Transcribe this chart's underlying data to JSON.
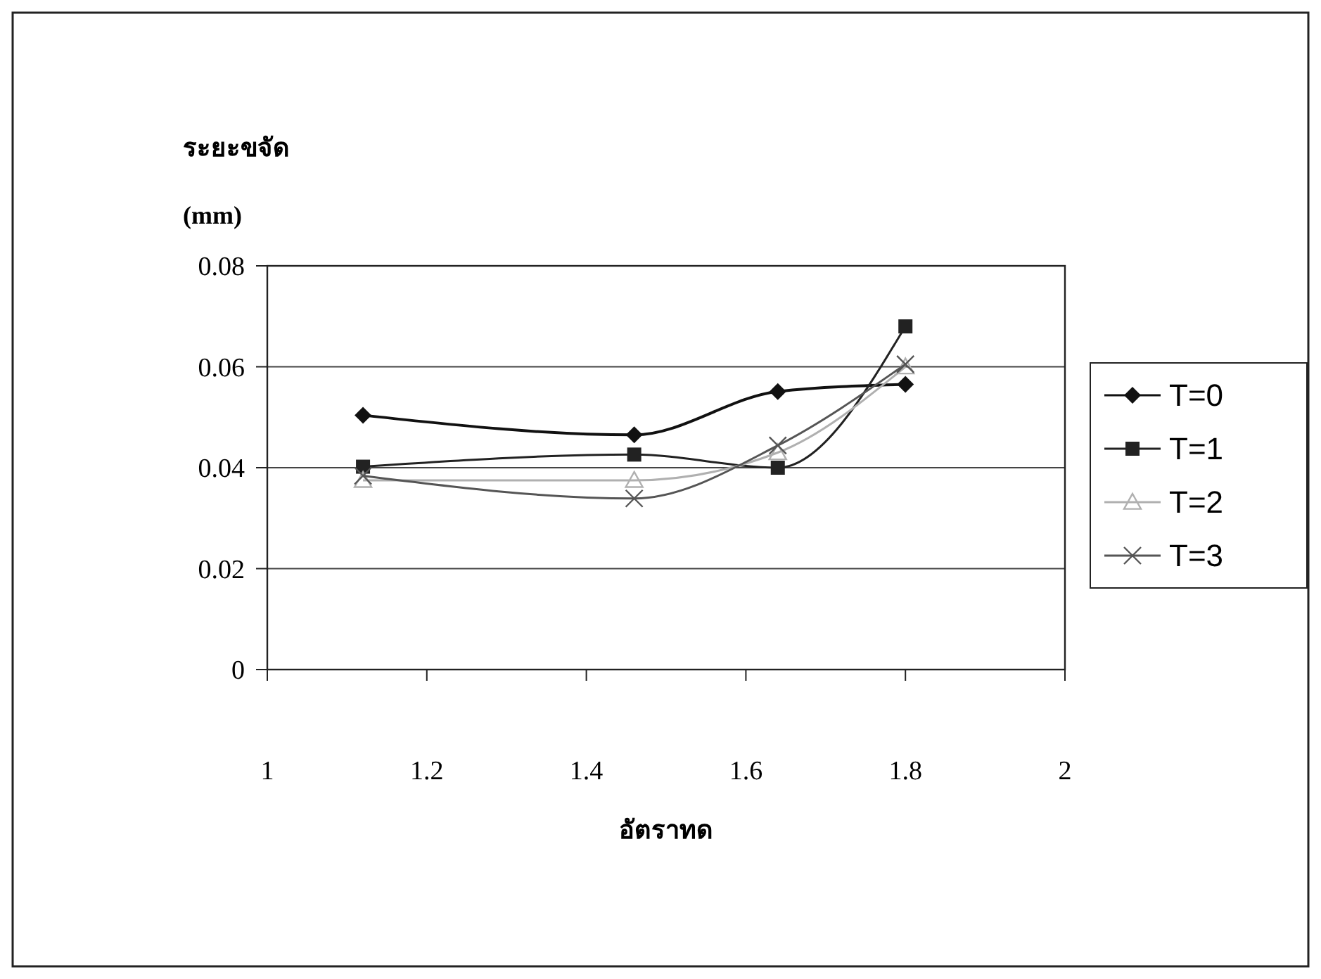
{
  "chart_data": {
    "type": "line",
    "ylabel": "ระยะขจัด (mm)",
    "xlabel": "อัตราทด",
    "x": [
      1.12,
      1.46,
      1.64,
      1.8
    ],
    "series": [
      {
        "name": "T=0",
        "color": "#111111",
        "marker": "diamond",
        "values": [
          0.0504,
          0.0465,
          0.0551,
          0.0565
        ]
      },
      {
        "name": "T=1",
        "color": "#222222",
        "marker": "square",
        "values": [
          0.0402,
          0.0426,
          0.04,
          0.068
        ]
      },
      {
        "name": "T=2",
        "color": "#b0b0b0",
        "marker": "triangle",
        "values": [
          0.0375,
          0.0375,
          0.043,
          0.06
        ]
      },
      {
        "name": "T=3",
        "color": "#555555",
        "marker": "cross",
        "values": [
          0.0384,
          0.0339,
          0.0444,
          0.0605
        ]
      }
    ],
    "xlim": [
      1,
      2
    ],
    "xticks": [
      1,
      1.2,
      1.4,
      1.6,
      1.8,
      2
    ],
    "ylim": [
      0,
      0.08
    ],
    "yticks": [
      0,
      0.02,
      0.04,
      0.06,
      0.08
    ],
    "grid": "y",
    "legend": "right"
  }
}
